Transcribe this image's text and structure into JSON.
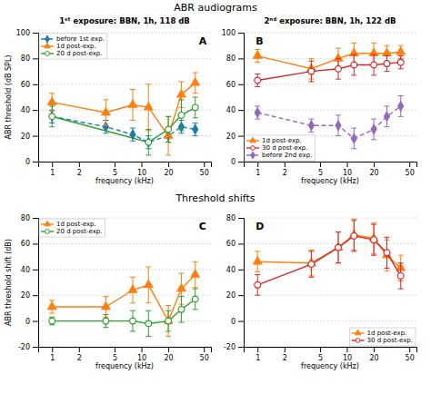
{
  "chart_data": [
    {
      "type": "line",
      "title": "ABR audiograms",
      "subtitle": "1ˢᵗ exposure: BBN, 1h, 118 dB",
      "annotations": [
        "A"
      ],
      "xlabel": "frequency (kHz)",
      "ylabel": "ABR threshold (dB SPL)",
      "x": [
        1,
        4,
        8,
        12,
        20,
        28,
        40
      ],
      "xlim": [
        0.7,
        60
      ],
      "xticks": [
        1,
        2,
        5,
        10,
        20,
        50
      ],
      "ylim": [
        0,
        100
      ],
      "yticks": [
        0,
        20,
        40,
        60,
        80,
        100
      ],
      "log": "x",
      "grid": true,
      "legend": "upper left",
      "series": [
        {
          "name": "before 1st exp.",
          "values": [
            35,
            27,
            21,
            15,
            20,
            27,
            25
          ],
          "errors": [
            5,
            5,
            5,
            5,
            5,
            5,
            5
          ],
          "marker": "diamond",
          "line_style": "dashed"
        },
        {
          "name": "1d post-exp.",
          "values": [
            46,
            38,
            44,
            42,
            20,
            52,
            61
          ],
          "errors": [
            7,
            10,
            12,
            18,
            15,
            10,
            8
          ],
          "marker": "triangle",
          "line_style": "solid"
        },
        {
          "name": "20 d post-exp.",
          "x": [
            1,
            12,
            20,
            28,
            40
          ],
          "values": [
            35,
            15,
            25,
            36,
            42
          ],
          "errors": [
            8,
            10,
            10,
            12,
            8
          ],
          "marker": "circle-open",
          "line_style": "solid"
        }
      ]
    },
    {
      "type": "line",
      "subtitle": "2ⁿᵈ exposure: BBN, 1h, 122 dB",
      "annotations": [
        "B"
      ],
      "xlabel": "frequency (kHz)",
      "x": [
        1,
        4,
        8,
        12,
        20,
        28,
        40
      ],
      "xlim": [
        0.7,
        60
      ],
      "xticks": [
        1,
        2,
        5,
        10,
        20,
        50
      ],
      "ylim": [
        0,
        100
      ],
      "yticks": [
        0,
        20,
        40,
        60,
        80,
        100
      ],
      "log": "x",
      "grid": true,
      "legend": "lower left",
      "series": [
        {
          "name": "1d post-exp.",
          "values": [
            82,
            72,
            80,
            84,
            84,
            84,
            85
          ],
          "errors": [
            5,
            8,
            8,
            8,
            8,
            6,
            5
          ],
          "marker": "triangle",
          "line_style": "solid"
        },
        {
          "name": "30 d post-exp.",
          "values": [
            63,
            70,
            72,
            75,
            75,
            76,
            77
          ],
          "errors": [
            5,
            8,
            8,
            8,
            8,
            6,
            5
          ],
          "marker": "circle-open",
          "line_style": "solid"
        },
        {
          "name": "before 2nd exp.",
          "values": [
            38,
            28,
            28,
            18,
            25,
            35,
            43
          ],
          "errors": [
            5,
            5,
            8,
            8,
            8,
            8,
            8
          ],
          "marker": "diamond",
          "line_style": "dashed"
        }
      ]
    },
    {
      "type": "line",
      "title": "Threshold shifts",
      "annotations": [
        "C"
      ],
      "xlabel": "frequency (kHz)",
      "ylabel": "ABR threshold shift (dB)",
      "x": [
        1,
        4,
        8,
        12,
        20,
        28,
        40
      ],
      "xlim": [
        0.7,
        60
      ],
      "xticks": [
        1,
        2,
        5,
        10,
        20,
        50
      ],
      "ylim": [
        -20,
        80
      ],
      "yticks": [
        -20,
        0,
        20,
        40,
        60,
        80
      ],
      "log": "x",
      "grid": true,
      "legend": "upper left",
      "series": [
        {
          "name": "1d post-exp.",
          "values": [
            11,
            11,
            24,
            28,
            0,
            25,
            36
          ],
          "errors": [
            5,
            8,
            10,
            14,
            12,
            12,
            10
          ],
          "marker": "triangle",
          "line_style": "solid"
        },
        {
          "name": "20 d post-exp.",
          "values": [
            0,
            0,
            0,
            -2,
            0,
            9,
            17
          ],
          "errors": [
            3,
            5,
            8,
            10,
            8,
            10,
            8
          ],
          "marker": "circle-open",
          "line_style": "solid"
        }
      ]
    },
    {
      "type": "line",
      "annotations": [
        "D"
      ],
      "xlabel": "frequency (kHz)",
      "x": [
        1,
        4,
        8,
        12,
        20,
        28,
        40
      ],
      "xlim": [
        0.7,
        60
      ],
      "xticks": [
        1,
        2,
        5,
        10,
        20,
        50
      ],
      "ylim": [
        -20,
        80
      ],
      "yticks": [
        -20,
        0,
        20,
        40,
        60,
        80
      ],
      "log": "x",
      "grid": true,
      "legend": "lower right",
      "series": [
        {
          "name": "1d post-exp.",
          "values": [
            46,
            45,
            57,
            67,
            64,
            51,
            41
          ],
          "errors": [
            8,
            10,
            12,
            12,
            12,
            12,
            10
          ],
          "marker": "triangle",
          "line_style": "solid"
        },
        {
          "name": "30 d post-exp.",
          "values": [
            28,
            44,
            57,
            66,
            63,
            53,
            35
          ],
          "errors": [
            8,
            10,
            12,
            12,
            12,
            12,
            10
          ],
          "marker": "circle-open",
          "line_style": "solid"
        }
      ]
    }
  ]
}
